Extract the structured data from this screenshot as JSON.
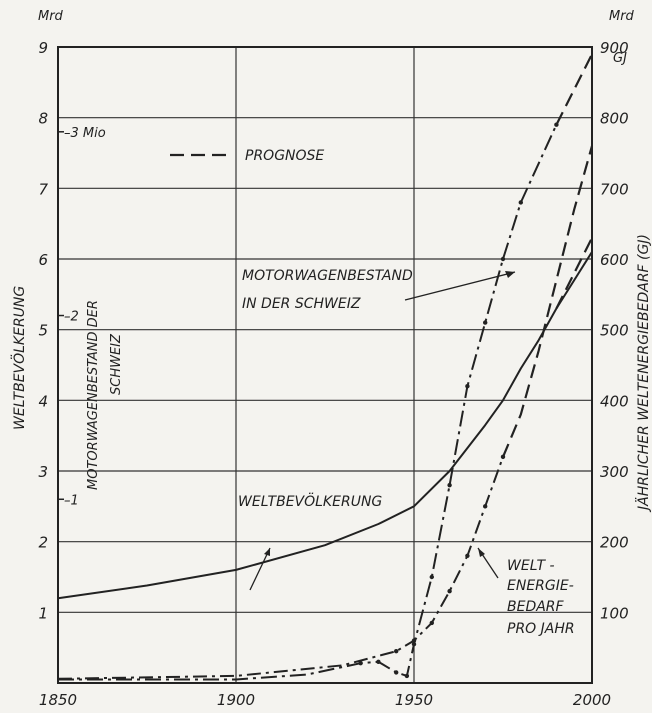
{
  "chart_data": {
    "type": "line",
    "title": "",
    "x": {
      "range": [
        1850,
        2000
      ],
      "ticks": [
        1850,
        1900,
        1950,
        2000
      ]
    },
    "y_left": {
      "unit": "Mrd",
      "label": "WELTBEVÖLKERUNG",
      "range": [
        0,
        9
      ],
      "ticks": [
        1,
        2,
        3,
        4,
        5,
        6,
        7,
        8,
        9
      ]
    },
    "y_left_inner": {
      "label_lines": [
        "MOTORWAGENBESTAND DER",
        "SCHWEIZ"
      ],
      "ticks": [
        {
          "label": "1",
          "y": 2.6
        },
        {
          "label": "2",
          "y": 5.2
        },
        {
          "label": "3 Mio",
          "y": 7.8
        }
      ]
    },
    "y_right": {
      "unit": "Mrd",
      "unit_sub": "GJ",
      "label": "JÄHRLICHER WELTENERGIEBEDARF (GJ)",
      "range": [
        0,
        900
      ],
      "ticks": [
        100,
        200,
        300,
        400,
        500,
        600,
        700,
        800,
        900
      ]
    },
    "legend": {
      "label": "PROGNOSE",
      "style": "dashed",
      "position": "top-left"
    },
    "series": [
      {
        "name": "WELTBEVÖLKERUNG",
        "label_lines": [
          "WELTBEVÖLKERUNG"
        ],
        "points": [
          [
            1850,
            1.2
          ],
          [
            1875,
            1.38
          ],
          [
            1900,
            1.6
          ],
          [
            1925,
            1.95
          ],
          [
            1940,
            2.25
          ],
          [
            1950,
            2.5
          ],
          [
            1960,
            3.0
          ],
          [
            1970,
            3.65
          ],
          [
            1975,
            4.0
          ],
          [
            1980,
            4.45
          ],
          [
            1985,
            4.85
          ],
          [
            1990,
            5.3
          ],
          [
            2000,
            6.1
          ]
        ],
        "forecast": [
          [
            1990,
            5.3
          ],
          [
            2000,
            6.3
          ]
        ]
      },
      {
        "name": "MOTORWAGENBESTAND IN DER SCHWEIZ",
        "label_lines": [
          "MOTORWAGENBESTAND",
          "IN DER SCHWEIZ"
        ],
        "points": [
          [
            1850,
            0.05
          ],
          [
            1900,
            0.05
          ],
          [
            1920,
            0.12
          ],
          [
            1935,
            0.28
          ],
          [
            1940,
            0.3
          ],
          [
            1945,
            0.15
          ],
          [
            1948,
            0.1
          ],
          [
            1950,
            0.55
          ],
          [
            1955,
            1.5
          ],
          [
            1960,
            2.8
          ],
          [
            1965,
            4.2
          ],
          [
            1970,
            5.1
          ],
          [
            1975,
            6.0
          ],
          [
            1980,
            6.8
          ],
          [
            1990,
            7.9
          ]
        ],
        "forecast": [
          [
            1990,
            7.9
          ],
          [
            2000,
            8.9
          ]
        ]
      },
      {
        "name": "WELT-ENERGIE-BEDARF PRO JAHR",
        "label_lines": [
          "WELT -",
          "ENERGIE-",
          "BEDARF",
          "PRO JAHR"
        ],
        "points": [
          [
            1850,
            0.06
          ],
          [
            1900,
            0.1
          ],
          [
            1930,
            0.25
          ],
          [
            1945,
            0.45
          ],
          [
            1950,
            0.6
          ],
          [
            1955,
            0.85
          ],
          [
            1960,
            1.3
          ],
          [
            1965,
            1.8
          ],
          [
            1970,
            2.5
          ],
          [
            1975,
            3.2
          ]
        ],
        "forecast": [
          [
            1975,
            3.2
          ],
          [
            1980,
            3.8
          ],
          [
            1985,
            4.7
          ],
          [
            1990,
            5.7
          ],
          [
            1995,
            6.7
          ],
          [
            2000,
            7.6
          ]
        ]
      }
    ],
    "grid": true
  }
}
